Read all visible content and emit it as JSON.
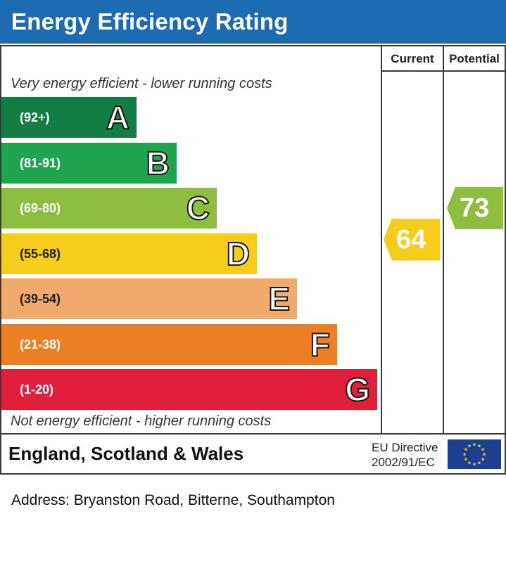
{
  "title": "Energy Efficiency Rating",
  "columns": {
    "current": "Current",
    "potential": "Potential"
  },
  "top_note": "Very energy efficient - lower running costs",
  "bottom_note": "Not energy efficient - higher running costs",
  "chart_data": {
    "type": "bar",
    "categories": [
      "A",
      "B",
      "C",
      "D",
      "E",
      "F",
      "G"
    ],
    "bands": [
      {
        "letter": "A",
        "range": "(92+)",
        "color": "#127e45"
      },
      {
        "letter": "B",
        "range": "(81-91)",
        "color": "#1ea54e"
      },
      {
        "letter": "C",
        "range": "(69-80)",
        "color": "#8dbe3f"
      },
      {
        "letter": "D",
        "range": "(55-68)",
        "color": "#f5cd1a"
      },
      {
        "letter": "E",
        "range": "(39-54)",
        "color": "#f2aa6c"
      },
      {
        "letter": "F",
        "range": "(21-38)",
        "color": "#ec7f23"
      },
      {
        "letter": "G",
        "range": "(1-20)",
        "color": "#e21f3a"
      }
    ],
    "current": {
      "value": "64",
      "band": "D",
      "color": "#f5cd1a"
    },
    "potential": {
      "value": "73",
      "band": "C",
      "color": "#8dbe3f"
    }
  },
  "footer": {
    "region": "England, Scotland & Wales",
    "directive_line1": "EU Directive",
    "directive_line2": "2002/91/EC",
    "flag_icon": "eu-flag-icon"
  },
  "address": "Address: Bryanston Road, Bitterne, Southampton"
}
